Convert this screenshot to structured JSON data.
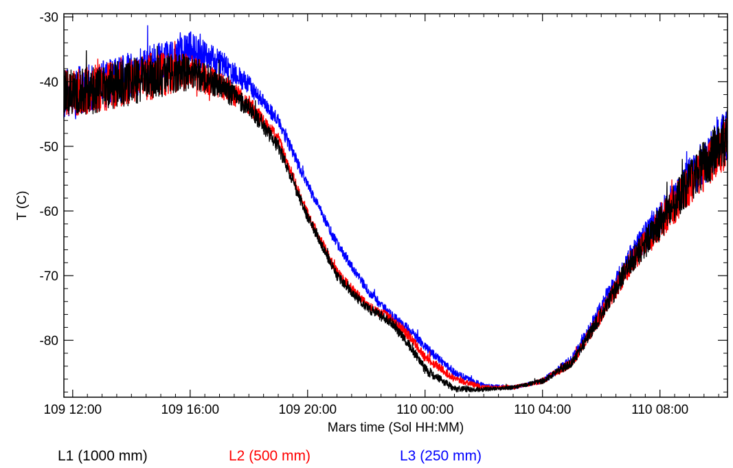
{
  "chart_data": {
    "type": "line",
    "title": "",
    "xlabel": "Mars time (Sol HH:MM)",
    "ylabel": "T (C)",
    "x_unit": "hours",
    "xlim": [
      11.7,
      34.3
    ],
    "ylim": [
      -88.8,
      -29.5
    ],
    "x_ticks": [
      {
        "value": 12,
        "label": "109 12:00"
      },
      {
        "value": 16,
        "label": "109 16:00"
      },
      {
        "value": 20,
        "label": "109 20:00"
      },
      {
        "value": 24,
        "label": "110 00:00"
      },
      {
        "value": 28,
        "label": "110 04:00"
      },
      {
        "value": 32,
        "label": "110 08:00"
      }
    ],
    "y_ticks": [
      {
        "value": -30,
        "label": "-30"
      },
      {
        "value": -40,
        "label": "-40"
      },
      {
        "value": -50,
        "label": "-50"
      },
      {
        "value": -60,
        "label": "-60"
      },
      {
        "value": -70,
        "label": "-70"
      },
      {
        "value": -80,
        "label": "-80"
      }
    ],
    "grid": false,
    "legend_position": "bottom",
    "series": [
      {
        "name": "L3 (250 mm)",
        "color": "#0000ff",
        "noise": [
          5,
          5,
          4.8,
          4.5,
          3.5,
          2.5,
          1.6,
          1.2,
          1.0,
          1.0,
          1.0,
          1.0,
          0.6,
          0.4,
          0.4,
          0.8,
          1.5,
          2.5,
          3.5,
          4.5,
          5.5
        ],
        "x": [
          11.7,
          13,
          14,
          15,
          16,
          17,
          18,
          19,
          20,
          21,
          22,
          22.8,
          23.5,
          24,
          25,
          26,
          27,
          28,
          29,
          30,
          31,
          32,
          33,
          34.3
        ],
        "y": [
          -42,
          -40.5,
          -39,
          -37,
          -35,
          -37,
          -40.5,
          -46,
          -56,
          -65,
          -72,
          -76,
          -78.5,
          -81,
          -85,
          -87,
          -87.3,
          -86.3,
          -83,
          -75,
          -67,
          -61,
          -55,
          -48
        ]
      },
      {
        "name": "L2 (500 mm)",
        "color": "#ff0000",
        "x": [
          11.7,
          13,
          14,
          15,
          16,
          17,
          18,
          19,
          20,
          21,
          22,
          22.8,
          23.5,
          24,
          25,
          26,
          27,
          28,
          29,
          30,
          31,
          32,
          33,
          34.3
        ],
        "y": [
          -42,
          -41,
          -40,
          -39,
          -38.5,
          -40.5,
          -43.5,
          -49,
          -60.5,
          -69.5,
          -74.5,
          -76.5,
          -79.5,
          -82.5,
          -86,
          -87.3,
          -87.3,
          -86.3,
          -83.5,
          -76,
          -68,
          -62,
          -56,
          -49
        ]
      },
      {
        "name": "L1 (1000 mm)",
        "color": "#000000",
        "x": [
          11.7,
          13,
          14,
          15,
          16,
          17,
          18,
          19,
          20,
          21,
          22,
          22.8,
          23.5,
          24,
          25,
          26,
          27,
          28,
          29,
          30,
          31,
          32,
          33,
          34.3
        ],
        "y": [
          -42,
          -41,
          -40,
          -39,
          -38.5,
          -40.5,
          -44,
          -50,
          -61,
          -70,
          -75,
          -77,
          -81,
          -84.5,
          -87.5,
          -87.6,
          -87.3,
          -86.3,
          -83.5,
          -76,
          -68,
          -62,
          -55.5,
          -48.5
        ]
      }
    ]
  }
}
